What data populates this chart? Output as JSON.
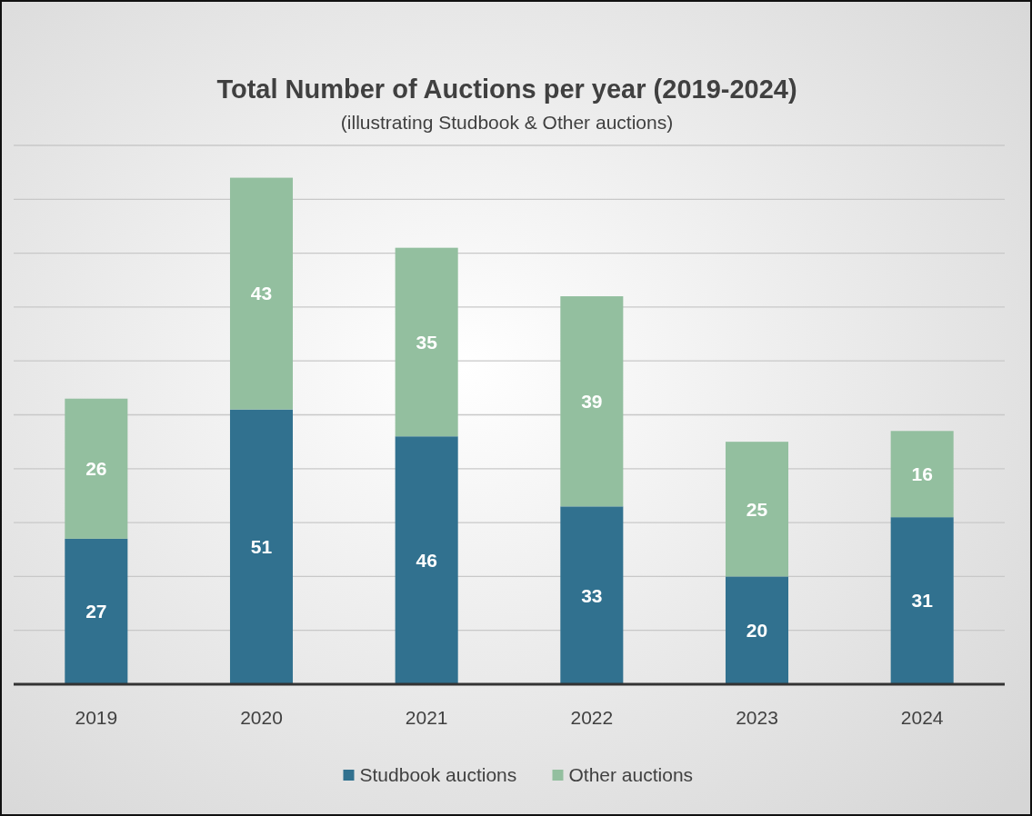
{
  "chart_data": {
    "type": "bar",
    "title": "Total Number of Auctions per year (2019-2024)",
    "subtitle": "(illustrating Studbook & Other auctions)",
    "categories": [
      "2019",
      "2020",
      "2021",
      "2022",
      "2023",
      "2024"
    ],
    "series": [
      {
        "name": "Studbook auctions",
        "color": "#31718f",
        "values": [
          27,
          51,
          46,
          33,
          20,
          31
        ]
      },
      {
        "name": "Other auctions",
        "color": "#93bf9f",
        "values": [
          26,
          43,
          35,
          39,
          25,
          16
        ]
      }
    ],
    "stacked": true,
    "data_labels": true,
    "ylim": [
      0,
      100
    ],
    "yticks": [
      {
        "value": 0,
        "label": null
      },
      {
        "value": 10,
        "label": null
      },
      {
        "value": 20,
        "label": null
      },
      {
        "value": 30,
        "label": null
      },
      {
        "value": 40,
        "label": null
      },
      {
        "value": 50,
        "label": null
      },
      {
        "value": 60,
        "label": null
      },
      {
        "value": 70,
        "label": null
      },
      {
        "value": 80,
        "label": null
      },
      {
        "value": 90,
        "label": null
      },
      {
        "value": 100,
        "label": null
      }
    ],
    "tick_labels": "x",
    "grid": "y",
    "legend": "bottom"
  }
}
